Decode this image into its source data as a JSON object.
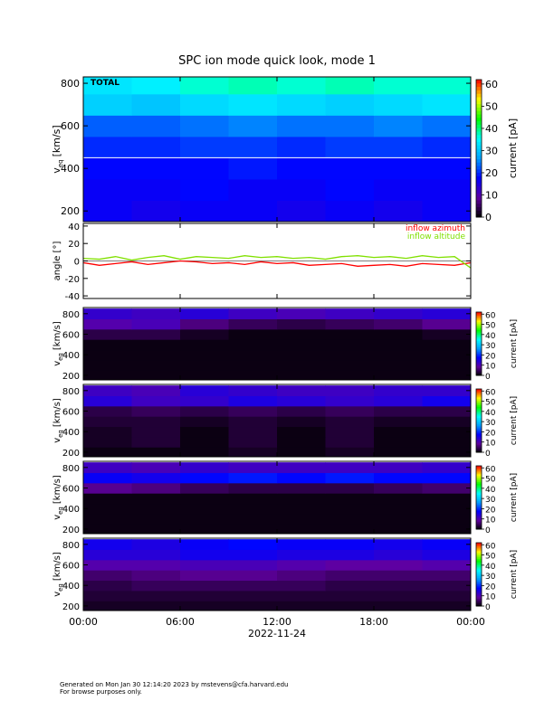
{
  "title": "SPC ion mode quick look, mode 1",
  "footer": [
    "Generated on Mon Jan 30 12:14:20 2023 by mstevens@cfa.harvard.edu",
    "For browse purposes only."
  ],
  "colormap": [
    "#000000",
    "#6000a0",
    "#0000ff",
    "#00a0ff",
    "#00ffff",
    "#00ff00",
    "#ffff00",
    "#ff0000"
  ],
  "chart_data": [
    {
      "type": "heatmap",
      "label": "TOTAL",
      "ylabel": "v",
      "ylabel_sub": "eq",
      "ylabel_unit": "[km/s]",
      "ylim": [
        150,
        830
      ],
      "yticks": [
        200,
        400,
        600,
        800
      ],
      "hline": 450,
      "clim": [
        0,
        62
      ],
      "cticks": [
        0,
        10,
        20,
        30,
        40,
        50,
        60
      ],
      "clabel": "current [pA]",
      "time_bins": [
        0,
        3,
        6,
        9,
        12,
        15,
        18,
        21,
        24
      ],
      "velocity_bins": [
        150,
        250,
        350,
        450,
        550,
        650,
        750,
        850
      ],
      "z": [
        [
          17,
          16,
          17,
          17,
          16,
          17,
          16,
          17
        ],
        [
          17,
          17,
          18,
          17,
          17,
          18,
          17,
          17
        ],
        [
          18,
          18,
          18,
          19,
          18,
          18,
          18,
          18
        ],
        [
          20,
          20,
          21,
          21,
          20,
          21,
          21,
          20
        ],
        [
          23,
          23,
          24,
          25,
          24,
          24,
          25,
          24
        ],
        [
          31,
          30,
          32,
          33,
          32,
          31,
          32,
          33
        ],
        [
          33,
          34,
          37,
          38,
          37,
          38,
          37,
          37
        ]
      ]
    },
    {
      "type": "line",
      "ylabel": "angle [°]",
      "ylim": [
        -43,
        43
      ],
      "yticks": [
        -40,
        -20,
        0,
        20,
        40
      ],
      "x": [
        0,
        1,
        2,
        3,
        4,
        5,
        6,
        7,
        8,
        9,
        10,
        11,
        12,
        13,
        14,
        15,
        16,
        17,
        18,
        19,
        20,
        21,
        22,
        23,
        24
      ],
      "series": [
        {
          "name": "inflow azimuth",
          "color": "#ff0000",
          "values": [
            -2,
            -5,
            -3,
            -1,
            -4,
            -2,
            0,
            -1,
            -3,
            -2,
            -4,
            -1,
            -3,
            -2,
            -5,
            -4,
            -3,
            -6,
            -5,
            -4,
            -6,
            -3,
            -4,
            -5,
            -2
          ]
        },
        {
          "name": "inflow altitude",
          "color": "#80e000",
          "values": [
            3,
            2,
            5,
            1,
            4,
            6,
            2,
            5,
            4,
            3,
            6,
            4,
            5,
            3,
            4,
            2,
            5,
            6,
            4,
            5,
            3,
            6,
            4,
            5,
            -8
          ]
        }
      ]
    },
    {
      "type": "heatmap",
      "ylabel": "v",
      "ylabel_sub": "eq",
      "ylabel_unit": "[km/s]",
      "ylim": [
        155,
        860
      ],
      "yticks": [
        200,
        400,
        600,
        800
      ],
      "clim": [
        0,
        62
      ],
      "cticks": [
        0,
        10,
        20,
        30,
        40,
        50,
        60
      ],
      "clabel": "current [pA]",
      "time_bins": [
        0,
        3,
        6,
        9,
        12,
        15,
        18,
        21,
        24
      ],
      "velocity_bins": [
        150,
        250,
        350,
        450,
        550,
        650,
        750,
        850
      ],
      "z": [
        [
          1,
          1,
          1,
          1,
          1,
          1,
          1,
          1
        ],
        [
          1,
          1,
          1,
          1,
          1,
          1,
          1,
          1
        ],
        [
          1,
          1,
          1,
          1,
          1,
          1,
          1,
          1
        ],
        [
          1,
          1,
          1,
          1,
          1,
          1,
          1,
          1
        ],
        [
          4,
          4,
          2,
          1,
          1,
          1,
          1,
          2
        ],
        [
          10,
          11,
          7,
          5,
          4,
          5,
          6,
          8
        ],
        [
          13,
          12,
          14,
          12,
          11,
          12,
          13,
          14
        ]
      ]
    },
    {
      "type": "heatmap",
      "ylabel": "v",
      "ylabel_sub": "eq",
      "ylabel_unit": "[km/s]",
      "ylim": [
        155,
        860
      ],
      "yticks": [
        200,
        400,
        600,
        800
      ],
      "clim": [
        0,
        62
      ],
      "cticks": [
        0,
        10,
        20,
        30,
        40,
        50,
        60
      ],
      "clabel": "current [pA]",
      "time_bins": [
        0,
        3,
        6,
        9,
        12,
        15,
        18,
        21,
        24
      ],
      "velocity_bins": [
        150,
        250,
        350,
        450,
        550,
        650,
        750,
        850
      ],
      "z": [
        [
          1,
          1,
          1,
          2,
          1,
          2,
          1,
          1
        ],
        [
          2,
          3,
          1,
          3,
          1,
          3,
          1,
          1
        ],
        [
          2,
          3,
          1,
          3,
          1,
          3,
          1,
          1
        ],
        [
          3,
          3,
          2,
          3,
          2,
          3,
          2,
          2
        ],
        [
          4,
          5,
          4,
          5,
          4,
          5,
          4,
          4
        ],
        [
          14,
          12,
          13,
          15,
          14,
          13,
          14,
          16
        ],
        [
          12,
          11,
          14,
          13,
          12,
          12,
          13,
          13
        ]
      ]
    },
    {
      "type": "heatmap",
      "ylabel": "v",
      "ylabel_sub": "eq",
      "ylabel_unit": "[km/s]",
      "ylim": [
        155,
        860
      ],
      "yticks": [
        200,
        400,
        600,
        800
      ],
      "clim": [
        0,
        62
      ],
      "cticks": [
        0,
        10,
        20,
        30,
        40,
        50,
        60
      ],
      "clabel": "current [pA]",
      "time_bins": [
        0,
        3,
        6,
        9,
        12,
        15,
        18,
        21,
        24
      ],
      "velocity_bins": [
        150,
        250,
        350,
        450,
        550,
        650,
        750,
        850
      ],
      "z": [
        [
          1,
          1,
          1,
          1,
          1,
          1,
          1,
          1
        ],
        [
          1,
          1,
          1,
          1,
          1,
          1,
          1,
          1
        ],
        [
          1,
          1,
          1,
          1,
          1,
          1,
          1,
          1
        ],
        [
          1,
          1,
          1,
          1,
          1,
          1,
          1,
          1
        ],
        [
          8,
          7,
          5,
          4,
          4,
          4,
          5,
          6
        ],
        [
          17,
          16,
          18,
          19,
          18,
          19,
          18,
          18
        ],
        [
          12,
          11,
          13,
          12,
          12,
          12,
          12,
          13
        ]
      ]
    },
    {
      "type": "heatmap",
      "ylabel": "v",
      "ylabel_sub": "eq",
      "ylabel_unit": "[km/s]",
      "ylim": [
        155,
        860
      ],
      "yticks": [
        200,
        400,
        600,
        800
      ],
      "clim": [
        0,
        62
      ],
      "cticks": [
        0,
        10,
        20,
        30,
        40,
        50,
        60
      ],
      "clabel": "current [pA]",
      "xlim": [
        0,
        24
      ],
      "xlabel": "2022-11-24",
      "xticks": [
        {
          "value": 0,
          "label": "00:00"
        },
        {
          "value": 6,
          "label": "06:00"
        },
        {
          "value": 12,
          "label": "12:00"
        },
        {
          "value": 18,
          "label": "18:00"
        },
        {
          "value": 24,
          "label": "00:00"
        }
      ],
      "time_bins": [
        0,
        3,
        6,
        9,
        12,
        15,
        18,
        21,
        24
      ],
      "velocity_bins": [
        150,
        250,
        350,
        450,
        550,
        650,
        750,
        850
      ],
      "z": [
        [
          2,
          2,
          2,
          2,
          2,
          2,
          2,
          2
        ],
        [
          3,
          3,
          3,
          3,
          3,
          3,
          3,
          3
        ],
        [
          4,
          5,
          5,
          5,
          5,
          4,
          4,
          4
        ],
        [
          6,
          7,
          8,
          8,
          7,
          6,
          6,
          6
        ],
        [
          10,
          10,
          11,
          11,
          10,
          9,
          9,
          10
        ],
        [
          14,
          14,
          16,
          16,
          15,
          15,
          14,
          15
        ],
        [
          16,
          15,
          17,
          18,
          17,
          17,
          16,
          17
        ]
      ]
    }
  ]
}
